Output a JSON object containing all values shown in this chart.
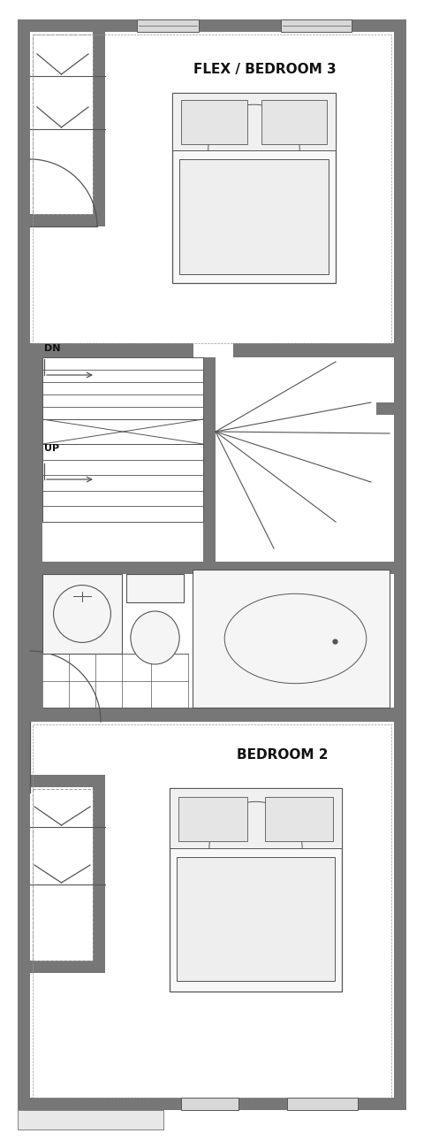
{
  "bg_color": "#ffffff",
  "wall_color": "#777777",
  "line_color": "#555555",
  "dashed_color": "#999999",
  "text_color": "#111111",
  "title1": "FLEX / BEDROOM 3",
  "title2": "BEDROOM 2",
  "label_dn": "DN",
  "label_up": "UP",
  "figsize": [
    4.8,
    12.9
  ],
  "dpi": 100
}
